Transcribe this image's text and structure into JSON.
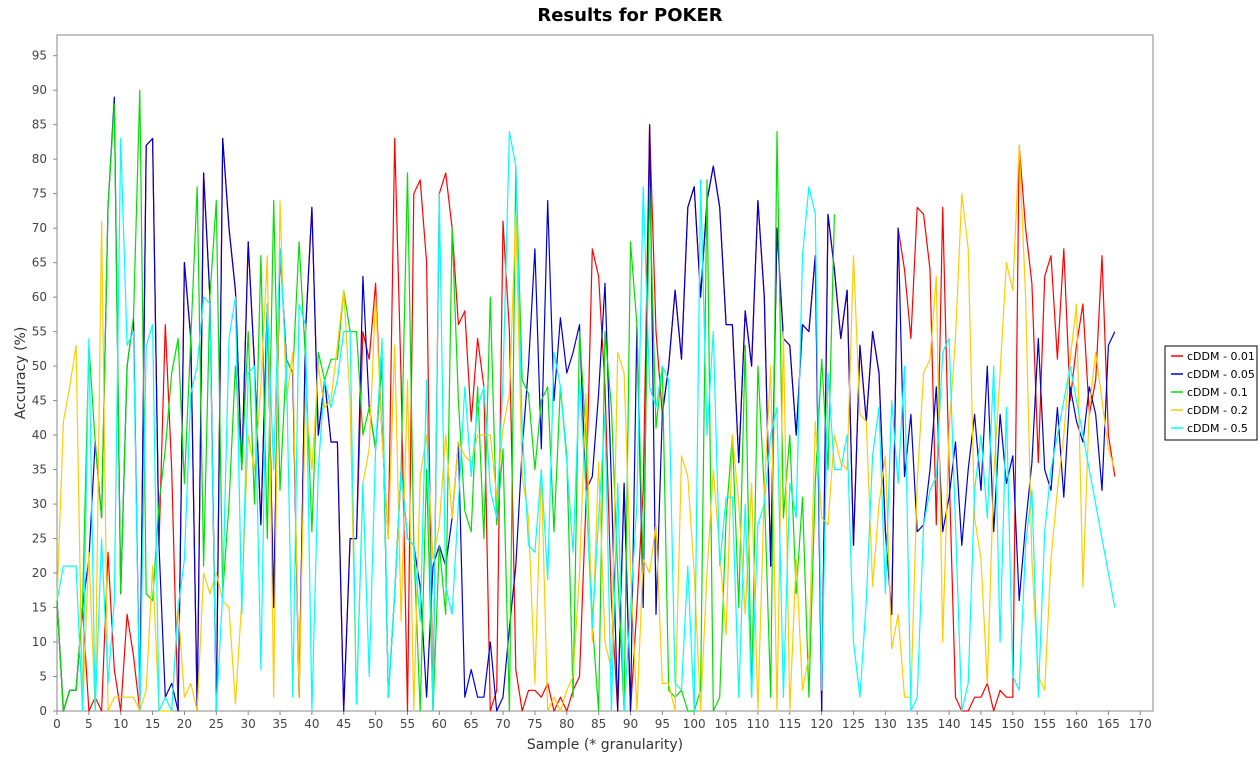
{
  "chart_data": {
    "type": "line",
    "title": "Results for POKER",
    "xlabel": "Sample (* granularity)",
    "ylabel": "Accuracy (%)",
    "xlim": [
      0,
      172
    ],
    "ylim": [
      0,
      98
    ],
    "x_ticks": [
      0,
      5,
      10,
      15,
      20,
      25,
      30,
      35,
      40,
      45,
      50,
      55,
      60,
      65,
      70,
      75,
      80,
      85,
      90,
      95,
      100,
      105,
      110,
      115,
      120,
      125,
      130,
      135,
      140,
      145,
      150,
      155,
      160,
      165,
      170
    ],
    "y_ticks": [
      0,
      5,
      10,
      15,
      20,
      25,
      30,
      35,
      40,
      45,
      50,
      55,
      60,
      65,
      70,
      75,
      80,
      85,
      90,
      95
    ],
    "grid": false,
    "legend_position": "right",
    "series": [
      {
        "name": "cDDM - 0.01",
        "color": "#ff0000",
        "values": [
          16,
          0,
          3,
          3,
          15,
          0,
          2,
          0,
          23,
          6,
          0,
          14,
          8,
          0,
          82,
          83,
          24,
          56,
          35,
          0,
          65,
          54,
          0,
          78,
          60,
          0,
          83,
          70,
          61,
          35,
          68,
          50,
          27,
          59,
          15,
          67,
          51,
          49,
          2,
          55,
          73,
          40,
          48,
          39,
          39,
          0,
          25,
          25,
          55,
          51,
          62,
          40,
          25,
          83,
          48,
          0,
          75,
          77,
          65,
          0,
          75,
          78,
          70,
          56,
          58,
          42,
          54,
          47,
          0,
          3,
          71,
          55,
          6,
          0,
          3,
          3,
          2,
          4,
          0,
          2,
          0,
          3,
          5,
          30,
          67,
          63,
          47,
          16,
          0,
          33,
          0,
          15,
          32,
          85,
          55,
          43,
          50,
          61,
          51,
          73,
          76,
          60,
          74,
          79,
          73,
          56,
          56,
          36,
          58,
          50,
          74,
          60,
          21,
          70,
          54,
          53,
          40,
          56,
          55,
          66,
          0,
          72,
          64,
          54,
          61,
          24,
          53,
          42,
          55,
          49,
          26,
          14,
          70,
          64,
          54,
          73,
          72,
          64,
          27,
          73,
          35,
          2,
          0,
          0,
          2,
          2,
          4,
          0,
          3,
          2,
          2,
          82,
          70,
          62,
          36,
          63,
          66,
          51,
          67,
          45,
          53,
          59,
          43,
          48,
          66,
          40,
          34
        ]
      },
      {
        "name": "cDDM - 0.05",
        "color": "#0000cc",
        "values": [
          16,
          0,
          3,
          3,
          15,
          22,
          39,
          28,
          73,
          89,
          17,
          50,
          57,
          0,
          82,
          83,
          24,
          2,
          4,
          0,
          65,
          54,
          0,
          78,
          60,
          0,
          83,
          70,
          61,
          35,
          68,
          50,
          27,
          59,
          15,
          67,
          51,
          49,
          2,
          55,
          73,
          40,
          48,
          39,
          39,
          0,
          25,
          25,
          63,
          44,
          38,
          51,
          2,
          17,
          35,
          25,
          24,
          18,
          2,
          21,
          24,
          21,
          28,
          39,
          2,
          6,
          2,
          2,
          10,
          0,
          2,
          12,
          21,
          38,
          50,
          67,
          38,
          74,
          45,
          57,
          49,
          52,
          56,
          32,
          34,
          46,
          62,
          33,
          0,
          33,
          0,
          56,
          15,
          85,
          14,
          43,
          50,
          61,
          51,
          73,
          76,
          60,
          74,
          79,
          73,
          56,
          56,
          36,
          58,
          50,
          74,
          60,
          21,
          70,
          54,
          53,
          40,
          56,
          55,
          66,
          0,
          72,
          64,
          54,
          61,
          24,
          53,
          42,
          55,
          49,
          26,
          14,
          70,
          34,
          43,
          26,
          27,
          35,
          47,
          26,
          31,
          39,
          24,
          35,
          43,
          32,
          50,
          26,
          43,
          33,
          37,
          16,
          27,
          36,
          54,
          35,
          32,
          44,
          31,
          47,
          42,
          39,
          47,
          43,
          32,
          53,
          55
        ]
      },
      {
        "name": "cDDM - 0.1",
        "color": "#00e000",
        "values": [
          16,
          0,
          3,
          3,
          15,
          53,
          39,
          28,
          73,
          88,
          17,
          50,
          57,
          90,
          17,
          16,
          30,
          38,
          49,
          54,
          33,
          54,
          76,
          21,
          60,
          74,
          17,
          30,
          50,
          35,
          55,
          30,
          66,
          25,
          74,
          32,
          51,
          49,
          68,
          51,
          26,
          52,
          48,
          51,
          51,
          61,
          55,
          55,
          40,
          44,
          38,
          51,
          2,
          17,
          35,
          78,
          24,
          0,
          35,
          0,
          24,
          14,
          70,
          45,
          29,
          26,
          47,
          25,
          60,
          27,
          38,
          0,
          79,
          48,
          46,
          35,
          45,
          47,
          26,
          47,
          37,
          2,
          55,
          40,
          13,
          0,
          55,
          44,
          20,
          0,
          68,
          56,
          20,
          76,
          41,
          50,
          3,
          2,
          3,
          0,
          0,
          3,
          77,
          0,
          2,
          28,
          40,
          15,
          53,
          2,
          50,
          32,
          2,
          84,
          28,
          40,
          17,
          31,
          2,
          33,
          51,
          35,
          72
        ]
      },
      {
        "name": "cDDM - 0.2",
        "color": "#ffcc00",
        "values": [
          16,
          42,
          47,
          53,
          0,
          23,
          0,
          71,
          0,
          2,
          2,
          2,
          2,
          0,
          3,
          21,
          0,
          0,
          0,
          15,
          2,
          4,
          0,
          20,
          17,
          20,
          16,
          15,
          1,
          16,
          40,
          35,
          47,
          66,
          2,
          74,
          45,
          52,
          2,
          46,
          35,
          50,
          44,
          45,
          53,
          61,
          45,
          1,
          33,
          38,
          60,
          40,
          25,
          53,
          13,
          48,
          0,
          34,
          40,
          22,
          27,
          40,
          28,
          39,
          37,
          36,
          40,
          40,
          40,
          31,
          41,
          46,
          72,
          34,
          28,
          4,
          35,
          0,
          2,
          0,
          3,
          5,
          20,
          46,
          10,
          36,
          10,
          6,
          52,
          49,
          21,
          0,
          22,
          20,
          27,
          4,
          4,
          0,
          37,
          34,
          20,
          0,
          20,
          35,
          23,
          11,
          40,
          30,
          14,
          33,
          0,
          32,
          50,
          0,
          55,
          0,
          22,
          3,
          8,
          42,
          28,
          27,
          40,
          36,
          35,
          66,
          43,
          42,
          18,
          30,
          37,
          9,
          14,
          2,
          2,
          33,
          49,
          51,
          63,
          10,
          41,
          54,
          75,
          67,
          28,
          22,
          4,
          34,
          49,
          65,
          61,
          82,
          60,
          22,
          5,
          3,
          22,
          32,
          40,
          51,
          59,
          18,
          44,
          52,
          45,
          38,
          35
        ]
      },
      {
        "name": "cDDM - 0.5",
        "color": "#00ffff",
        "values": [
          16,
          21,
          21,
          21,
          0,
          54,
          0,
          25,
          4,
          16,
          83,
          53,
          55,
          0,
          53,
          56,
          0,
          2,
          0,
          15,
          22,
          46,
          50,
          60,
          59,
          0,
          17,
          54,
          60,
          14,
          49,
          50,
          6,
          59,
          35,
          67,
          50,
          2,
          59,
          56,
          0,
          35,
          48,
          44,
          48,
          55,
          55,
          1,
          33,
          5,
          38,
          54,
          2,
          17,
          35,
          25,
          24,
          13,
          48,
          0,
          75,
          18,
          14,
          30,
          47,
          34,
          44,
          47,
          32,
          28,
          48,
          84,
          79,
          41,
          24,
          23,
          35,
          19,
          52,
          47,
          36,
          23,
          48,
          32,
          12,
          28,
          43,
          0,
          33,
          0,
          15,
          30,
          76,
          47,
          44,
          50,
          48,
          4,
          3,
          21,
          0,
          77,
          40,
          55,
          21,
          31,
          31,
          2,
          30,
          2,
          27,
          30,
          40,
          44,
          2,
          33,
          28,
          66,
          76,
          72,
          3,
          49,
          35,
          35,
          40,
          10,
          2,
          16,
          37,
          44,
          17,
          45,
          33,
          50,
          0,
          2,
          27,
          32,
          34,
          52,
          54,
          27,
          0,
          4,
          32,
          40,
          28,
          50,
          10,
          44,
          5,
          3,
          24,
          32,
          2,
          26,
          35,
          40,
          45,
          50,
          45,
          40,
          35,
          30,
          25,
          20,
          15
        ]
      }
    ]
  }
}
